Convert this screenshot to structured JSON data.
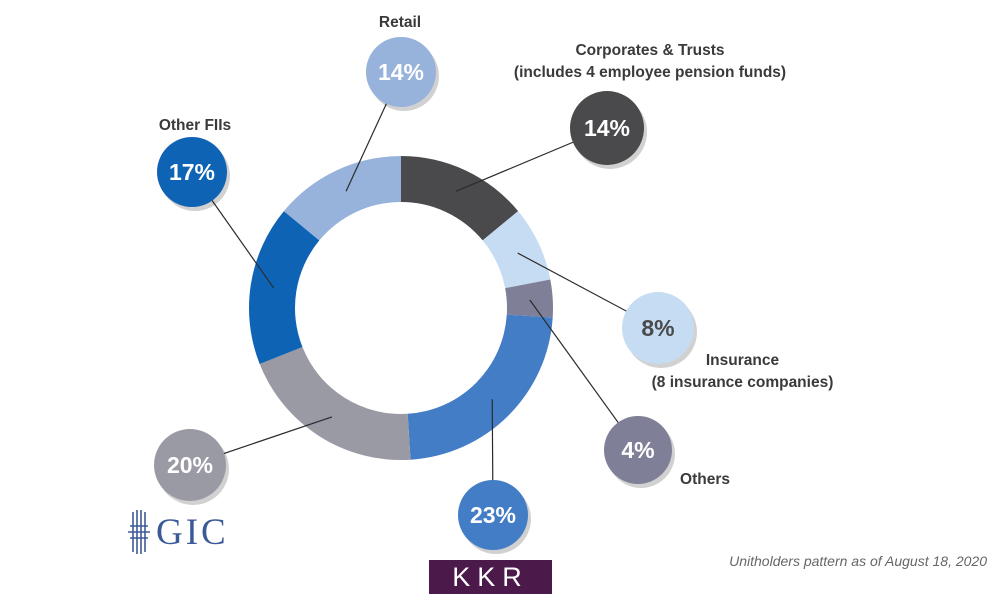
{
  "chart_data": {
    "type": "pie",
    "donut": true,
    "slices": [
      {
        "label": "Corporates & Trusts",
        "sublabel": "(includes 4 employee pension funds)",
        "value": 14,
        "value_label": "14%",
        "color": "#4a4a4d"
      },
      {
        "label": "Insurance",
        "sublabel": "(8 insurance companies)",
        "value": 8,
        "value_label": "8%",
        "color": "#c5dcf3"
      },
      {
        "label": "Others",
        "sublabel": "",
        "value": 4,
        "value_label": "4%",
        "color": "#7f8097"
      },
      {
        "label": "",
        "sublabel": "",
        "value": 23,
        "value_label": "23%",
        "color": "#437dc6"
      },
      {
        "label": "",
        "sublabel": "",
        "value": 20,
        "value_label": "20%",
        "color": "#9a9aa5"
      },
      {
        "label": "Other FIIs",
        "sublabel": "",
        "value": 17,
        "value_label": "17%",
        "color": "#0f63b4"
      },
      {
        "label": "Retail",
        "sublabel": "",
        "value": 14,
        "value_label": "14%",
        "color": "#97b2db"
      }
    ]
  },
  "logos": {
    "gic": "GIC",
    "kkr": "KKR"
  },
  "footnote": "Unitholders pattern as of August 18, 2020"
}
